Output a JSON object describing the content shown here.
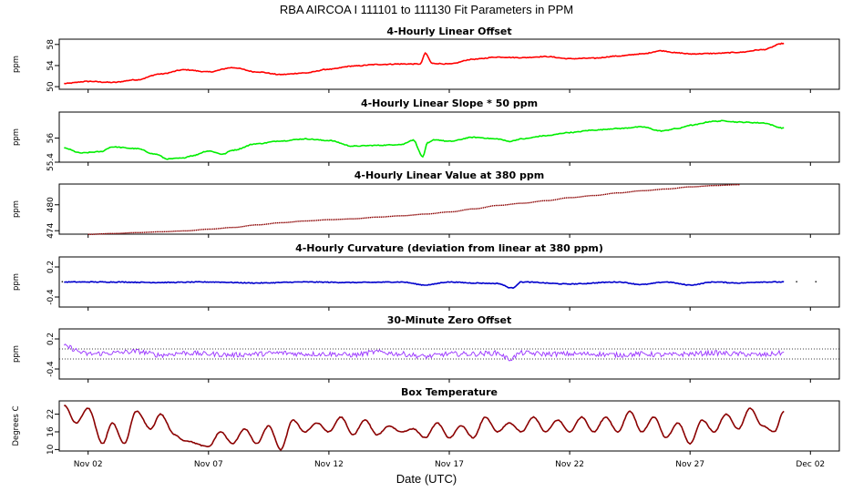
{
  "title": "RBA   AIRCOA I   111101 to 111130   Fit Parameters in PPM",
  "xlabel": "Date (UTC)",
  "chart_data": {
    "type": "line",
    "x_ticks": [
      "Nov 02",
      "Nov 07",
      "Nov 12",
      "Nov 17",
      "Nov 22",
      "Nov 27",
      "Dec 02"
    ],
    "x_tick_days": [
      2,
      7,
      12,
      17,
      22,
      27,
      32
    ],
    "x_range_days": [
      0.8,
      33.2
    ],
    "data_range_days": [
      1.0,
      30.9
    ],
    "panels": [
      {
        "title": "4-Hourly Linear Offset",
        "ylabel": "ppm",
        "color": "#ff0000",
        "style": "line",
        "yticks": [
          50,
          54,
          58
        ],
        "ylim": [
          49.5,
          59
        ],
        "x": [
          1.0,
          2.0,
          3.0,
          4.0,
          5.0,
          6.0,
          7.0,
          8.0,
          9.0,
          10.0,
          11.0,
          12.0,
          13.0,
          14.0,
          15.0,
          15.8,
          16.0,
          16.3,
          17.0,
          18.0,
          19.0,
          20.0,
          21.0,
          22.0,
          23.0,
          24.0,
          25.0,
          25.8,
          26.5,
          27.0,
          28.0,
          29.0,
          30.0,
          30.9
        ],
        "y": [
          50.6,
          51.0,
          50.8,
          51.3,
          52.4,
          53.2,
          52.8,
          53.6,
          52.8,
          52.3,
          52.6,
          53.3,
          53.9,
          54.2,
          54.3,
          54.3,
          56.3,
          54.4,
          54.3,
          55.2,
          55.6,
          55.5,
          55.7,
          55.3,
          55.4,
          55.8,
          56.2,
          56.8,
          56.4,
          56.2,
          56.3,
          56.5,
          57.0,
          58.2
        ]
      },
      {
        "title": "4-Hourly Linear Slope * 50 ppm",
        "ylabel": "ppm",
        "color": "#00ee00",
        "style": "line",
        "yticks": [
          55.4,
          56.0
        ],
        "ylim": [
          55.4,
          56.65
        ],
        "x": [
          1.0,
          1.7,
          2.5,
          3.0,
          4.0,
          4.8,
          5.3,
          5.9,
          6.3,
          7.0,
          7.6,
          8.0,
          9.0,
          10.0,
          11.0,
          12.0,
          13.0,
          14.0,
          15.0,
          15.5,
          15.9,
          16.1,
          16.4,
          17.0,
          18.0,
          19.0,
          19.5,
          20.0,
          21.0,
          22.0,
          23.0,
          24.0,
          25.0,
          25.8,
          26.5,
          27.0,
          28.0,
          28.4,
          29.0,
          30.0,
          30.9
        ],
        "y": [
          55.75,
          55.63,
          55.66,
          55.78,
          55.74,
          55.6,
          55.48,
          55.5,
          55.56,
          55.68,
          55.6,
          55.7,
          55.86,
          55.93,
          55.98,
          55.94,
          55.8,
          55.82,
          55.84,
          55.95,
          55.54,
          55.88,
          55.96,
          55.92,
          56.02,
          55.98,
          55.92,
          55.98,
          56.06,
          56.14,
          56.2,
          56.24,
          56.28,
          56.18,
          56.24,
          56.32,
          56.42,
          56.43,
          56.4,
          56.38,
          56.25
        ]
      },
      {
        "title": "4-Hourly Linear Value at 380 ppm",
        "ylabel": "ppm",
        "color": "#8b0000",
        "style": "dots",
        "yticks": [
          474,
          480
        ],
        "ylim": [
          473.2,
          484.8
        ],
        "x": [
          2.0,
          3.0,
          4.0,
          5.0,
          6.0,
          7.0,
          8.0,
          9.0,
          10.0,
          11.0,
          12.0,
          13.0,
          14.0,
          15.0,
          16.0,
          17.0,
          18.0,
          19.0,
          20.0,
          21.0,
          22.0,
          23.0,
          24.0,
          25.0,
          26.0,
          27.0,
          28.0,
          29.0
        ],
        "y": [
          473.3,
          473.5,
          473.7,
          473.9,
          474.1,
          474.5,
          474.9,
          475.5,
          476.0,
          476.4,
          476.7,
          476.9,
          477.3,
          477.6,
          478.0,
          478.5,
          479.2,
          480.0,
          480.5,
          481.1,
          481.8,
          482.3,
          482.9,
          483.4,
          483.8,
          484.3,
          484.6,
          484.8
        ]
      },
      {
        "title": "4-Hourly Curvature (deviation from linear at 380 ppm)",
        "ylabel": "ppm",
        "color": "#0000cc",
        "style": "line",
        "yticks": [
          -0.4,
          0.2
        ],
        "ylim": [
          -0.6,
          0.4
        ],
        "x": [
          1.0,
          3.0,
          5.0,
          7.0,
          9.0,
          11.0,
          13.0,
          15.0,
          16.0,
          17.0,
          18.0,
          19.0,
          19.6,
          20.0,
          22.0,
          24.0,
          25.0,
          26.0,
          27.0,
          28.0,
          29.0,
          30.0,
          30.9
        ],
        "y": [
          -0.1,
          -0.1,
          -0.11,
          -0.1,
          -0.12,
          -0.1,
          -0.11,
          -0.1,
          -0.16,
          -0.1,
          -0.12,
          -0.13,
          -0.22,
          -0.1,
          -0.14,
          -0.1,
          -0.15,
          -0.1,
          -0.16,
          -0.1,
          -0.12,
          -0.1,
          -0.1
        ]
      },
      {
        "title": "30-Minute Zero Offset",
        "ylabel": "ppm",
        "color": "#9933ff",
        "style": "noisy",
        "yticks": [
          -0.4,
          0.2
        ],
        "ylim": [
          -0.6,
          0.4
        ],
        "ref_lines": [
          0.0,
          -0.2
        ],
        "x": [
          1.0,
          2.0,
          3.0,
          4.0,
          5.0,
          6.0,
          7.0,
          8.0,
          9.0,
          10.0,
          11.0,
          12.0,
          13.0,
          14.0,
          15.0,
          16.0,
          17.0,
          18.0,
          19.0,
          19.5,
          20.0,
          21.0,
          22.0,
          23.0,
          24.0,
          25.0,
          26.0,
          27.0,
          28.0,
          29.0,
          30.0,
          30.9
        ],
        "y": [
          0.05,
          -0.1,
          -0.08,
          -0.05,
          -0.12,
          -0.08,
          -0.1,
          -0.12,
          -0.1,
          -0.08,
          -0.1,
          -0.1,
          -0.12,
          -0.06,
          -0.1,
          -0.15,
          -0.1,
          -0.1,
          -0.08,
          -0.2,
          -0.08,
          -0.1,
          -0.1,
          -0.1,
          -0.12,
          -0.1,
          -0.12,
          -0.1,
          -0.08,
          -0.1,
          -0.12,
          -0.08
        ]
      },
      {
        "title": "Box Temperature",
        "ylabel": "Degrees C",
        "color": "#8b0000",
        "style": "line",
        "yticks": [
          10,
          16,
          22
        ],
        "ylim": [
          9.5,
          26.5
        ],
        "x": [
          1.0,
          1.5,
          2.0,
          2.6,
          3.0,
          3.5,
          4.0,
          4.6,
          5.0,
          5.6,
          6.0,
          7.0,
          7.5,
          8.0,
          8.5,
          9.0,
          9.5,
          10.0,
          10.5,
          11.0,
          11.5,
          12.0,
          12.5,
          13.0,
          13.5,
          14.0,
          14.5,
          15.0,
          15.5,
          16.0,
          16.5,
          17.0,
          17.5,
          18.0,
          18.5,
          19.0,
          19.5,
          20.0,
          20.5,
          21.0,
          21.5,
          22.0,
          22.5,
          23.0,
          23.5,
          24.0,
          24.5,
          25.0,
          25.5,
          26.0,
          26.5,
          27.0,
          27.5,
          28.0,
          28.5,
          29.0,
          29.5,
          30.0,
          30.5,
          30.9
        ],
        "y": [
          25,
          19,
          24,
          12,
          19,
          12,
          23,
          17,
          22,
          15,
          13,
          11,
          16,
          12,
          17,
          12,
          18,
          10,
          20,
          16,
          19,
          16,
          21,
          15,
          20,
          15,
          18,
          16,
          17,
          14,
          19,
          14,
          18,
          14,
          21,
          16,
          19,
          16,
          21,
          16,
          20,
          16,
          21,
          16,
          21,
          16,
          23,
          16,
          21,
          14,
          19,
          12,
          20,
          16,
          22,
          17,
          24,
          18,
          16,
          23
        ]
      }
    ]
  }
}
